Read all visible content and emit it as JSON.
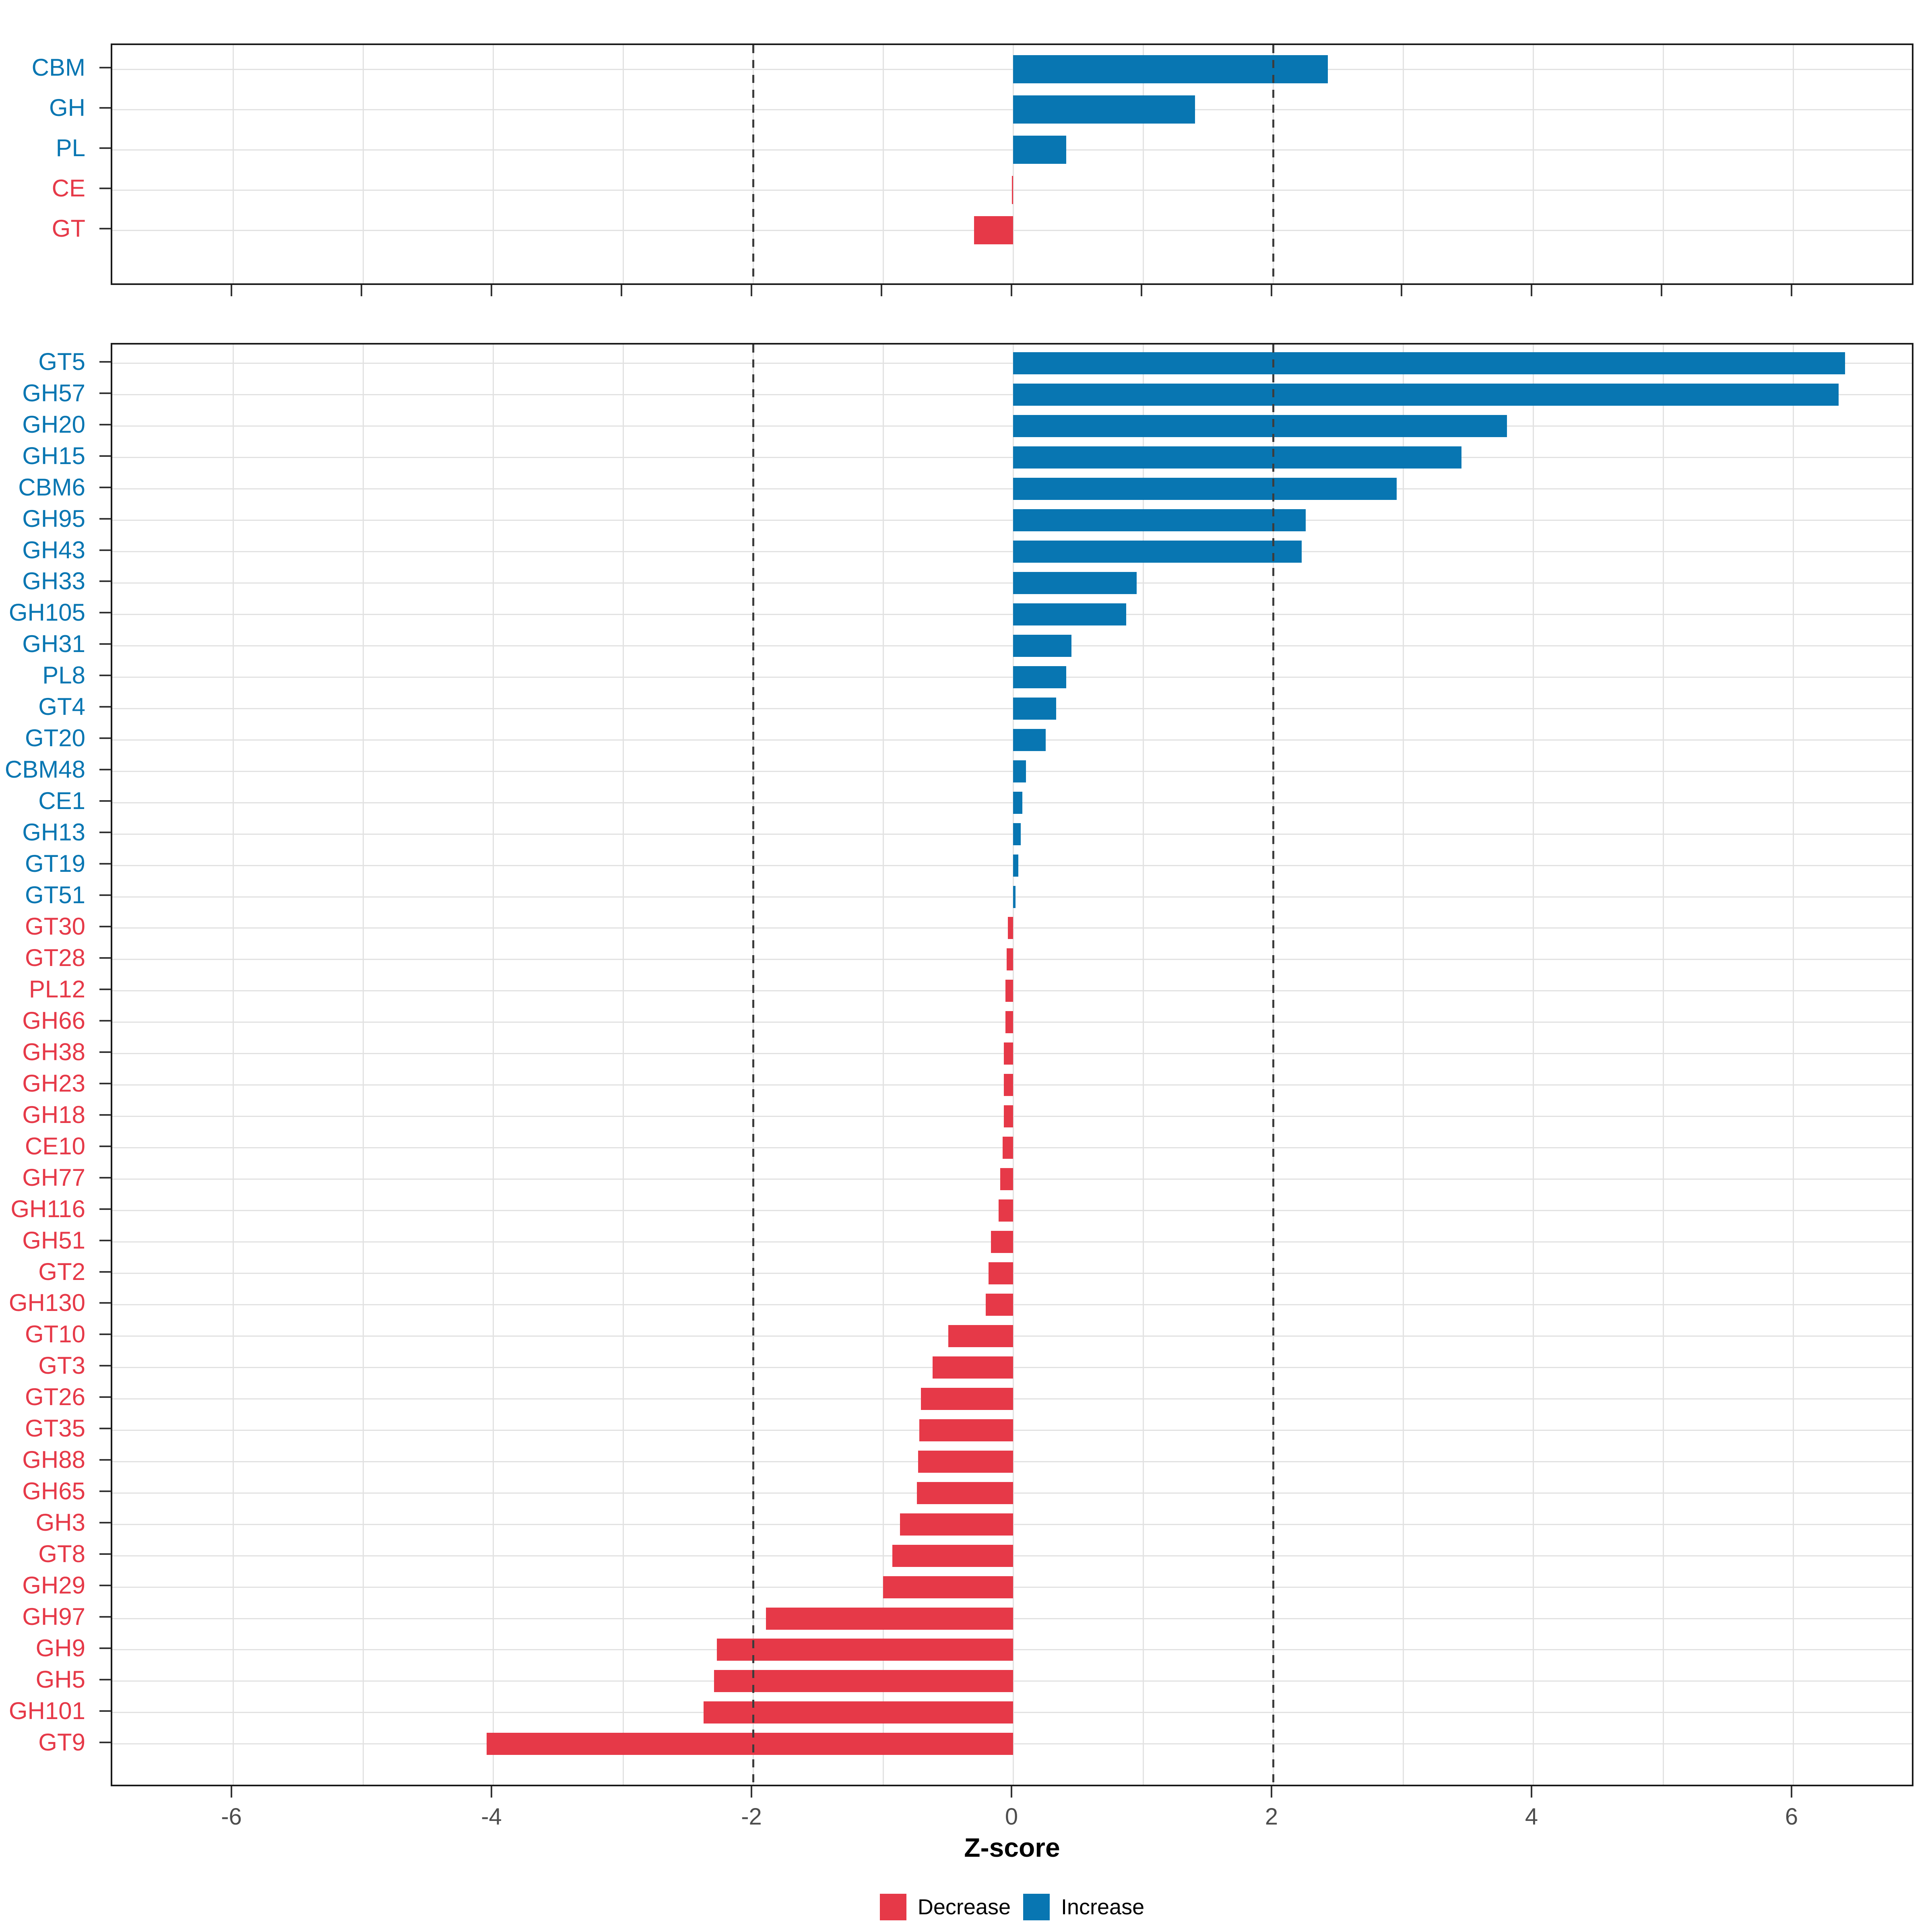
{
  "chart_data": {
    "type": "bar",
    "orientation": "horizontal",
    "title": "",
    "xlabel": "Z-score",
    "x_ticks": [
      -6,
      -4,
      -2,
      0,
      2,
      4,
      6
    ],
    "x_tick_labels": [
      "-6",
      "-4",
      "-2",
      "0",
      "2",
      "4",
      "6"
    ],
    "x_range": [
      -6.93,
      6.94
    ],
    "gridline_step": 1,
    "reference_lines": [
      -2,
      2
    ],
    "grid": "on",
    "panels": [
      {
        "name": "top",
        "categories": [
          "CBM",
          "GH",
          "PL",
          "CE",
          "GT"
        ],
        "values": [
          2.42,
          1.4,
          0.41,
          -0.01,
          -0.3
        ]
      },
      {
        "name": "bottom",
        "categories": [
          "GT5",
          "GH57",
          "GH20",
          "GH15",
          "CBM6",
          "GH95",
          "GH43",
          "GH33",
          "GH105",
          "GH31",
          "PL8",
          "GT4",
          "GT20",
          "CBM48",
          "CE1",
          "GH13",
          "GT19",
          "GT51",
          "GT30",
          "GT28",
          "PL12",
          "GH66",
          "GH38",
          "GH23",
          "GH18",
          "CE10",
          "GH77",
          "GH116",
          "GH51",
          "GT2",
          "GH130",
          "GT10",
          "GT3",
          "GT26",
          "GT35",
          "GH88",
          "GH65",
          "GH3",
          "GT8",
          "GH29",
          "GH97",
          "GH9",
          "GH5",
          "GH101",
          "GT9"
        ],
        "values": [
          6.4,
          6.35,
          3.8,
          3.45,
          2.95,
          2.25,
          2.22,
          0.95,
          0.87,
          0.45,
          0.41,
          0.33,
          0.25,
          0.1,
          0.07,
          0.06,
          0.04,
          0.02,
          -0.04,
          -0.05,
          -0.06,
          -0.06,
          -0.07,
          -0.07,
          -0.07,
          -0.08,
          -0.1,
          -0.11,
          -0.17,
          -0.19,
          -0.21,
          -0.5,
          -0.62,
          -0.71,
          -0.72,
          -0.73,
          -0.74,
          -0.87,
          -0.93,
          -1.0,
          -1.9,
          -2.28,
          -2.3,
          -2.38,
          -4.05
        ]
      }
    ],
    "legend": {
      "position": "bottom",
      "items": [
        {
          "label": "Decrease",
          "color": "#E63948"
        },
        {
          "label": "Increase",
          "color": "#0876B2"
        }
      ]
    }
  },
  "colors": {
    "increase": "#0876B2",
    "decrease": "#E63948",
    "axis_text": "#4D4D4D",
    "grid": "#E2E2E2",
    "dashed_line": "#3C3C3C",
    "panel_border": "#1A1A1A",
    "tick_mark": "#333333",
    "legend_text": "#000000"
  }
}
